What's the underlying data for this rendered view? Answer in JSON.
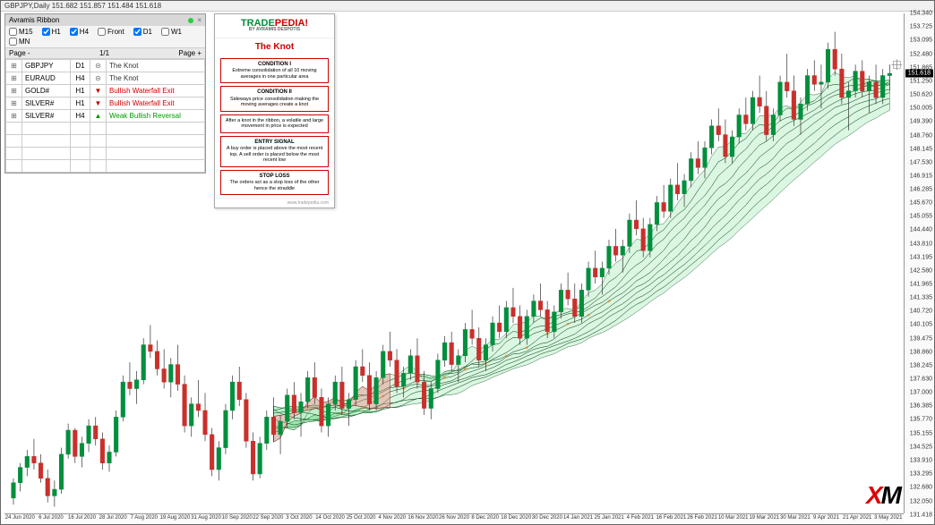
{
  "title": "GBPJPY,Daily  151.682 151.857 151.484 151.618",
  "panel": {
    "name": "Avramis Ribbon",
    "timeframes": [
      {
        "label": "M15",
        "checked": false
      },
      {
        "label": "H1",
        "checked": true
      },
      {
        "label": "H4",
        "checked": true
      },
      {
        "label": "Front",
        "checked": false
      },
      {
        "label": "D1",
        "checked": true
      },
      {
        "label": "W1",
        "checked": false
      },
      {
        "label": "MN",
        "checked": false
      }
    ],
    "page_minus": "Page -",
    "page_ind": "1/1",
    "page_plus": "Page +",
    "rows": [
      {
        "sym": "GBPJPY",
        "tf": "D1",
        "ic": "dash",
        "sig": "The Knot",
        "color": "#333"
      },
      {
        "sym": "EURAUD",
        "tf": "H4",
        "ic": "dash",
        "sig": "The Knot",
        "color": "#333"
      },
      {
        "sym": "GOLD#",
        "tf": "H1",
        "ic": "dn",
        "sig": "Bullish Waterfall Exit",
        "color": "#c00"
      },
      {
        "sym": "SILVER#",
        "tf": "H1",
        "ic": "dn",
        "sig": "Bullish Waterfall Exit",
        "color": "#c00"
      },
      {
        "sym": "SILVER#",
        "tf": "H4",
        "ic": "up",
        "sig": "Weak Bullish Reversal",
        "color": "#090"
      }
    ],
    "empty_rows": 4
  },
  "card": {
    "brand_a": "TRADE",
    "brand_b": "PEDIA",
    "brand_c": "!",
    "sub": "BY AVRAMIS DESPOTIS",
    "title": "The Knot",
    "boxes": [
      {
        "h": "CONDITION I",
        "t": "Extreme consolidation of all 10 moving averages in one particular area"
      },
      {
        "h": "CONDITION II",
        "t": "Sideways price consolidation making the moving averages create a knot"
      },
      {
        "h": "",
        "t": "After a knot in the ribbon, a volatile and large movement in price is expected"
      },
      {
        "h": "ENTRY SIGNAL",
        "t": "A buy order is placed above the most recent top. A sell order is placed below the most recent low"
      },
      {
        "h": "STOP LOSS",
        "t": "The orders act as a stop loss of the other hence the straddle"
      }
    ],
    "foot": "www.tradepedia.com"
  },
  "chart": {
    "type": "candlestick-with-ribbon",
    "ylim": [
      131.418,
      154.34
    ],
    "yticks": [
      154.34,
      153.725,
      153.095,
      152.48,
      151.865,
      151.25,
      150.62,
      150.005,
      149.39,
      148.76,
      148.145,
      147.53,
      146.915,
      146.285,
      145.67,
      145.055,
      144.44,
      143.81,
      143.195,
      142.58,
      141.965,
      141.335,
      140.72,
      140.105,
      139.475,
      138.86,
      138.245,
      137.63,
      137.0,
      136.385,
      135.77,
      135.155,
      134.525,
      133.91,
      133.295,
      132.68,
      132.05,
      131.418
    ],
    "price_now": 151.618,
    "xticks": [
      "24 Jun 2020",
      "6 Jul 2020",
      "16 Jul 2020",
      "28 Jul 2020",
      "7 Aug 2020",
      "19 Aug 2020",
      "31 Aug 2020",
      "10 Sep 2020",
      "22 Sep 2020",
      "3 Oct 2020",
      "14 Oct 2020",
      "25 Oct 2020",
      "4 Nov 2020",
      "16 Nov 2020",
      "26 Nov 2020",
      "8 Dec 2020",
      "18 Dec 2020",
      "30 Dec 2020",
      "14 Jan 2021",
      "25 Jan 2021",
      "4 Feb 2021",
      "16 Feb 2021",
      "26 Feb 2021",
      "10 Mar 2021",
      "19 Mar 2021",
      "30 Mar 2021",
      "9 Apr 2021",
      "21 Apr 2021",
      "3 May 2021"
    ],
    "candles": [
      [
        132.2,
        133.1,
        131.9,
        132.9
      ],
      [
        132.9,
        133.8,
        132.5,
        133.6
      ],
      [
        133.6,
        134.4,
        133.2,
        134.1
      ],
      [
        134.1,
        134.9,
        133.5,
        133.8
      ],
      [
        133.8,
        134.2,
        132.9,
        133.1
      ],
      [
        133.1,
        133.5,
        132.0,
        132.3
      ],
      [
        132.3,
        133.0,
        131.8,
        132.6
      ],
      [
        132.6,
        134.5,
        132.4,
        134.2
      ],
      [
        134.2,
        135.6,
        134.0,
        135.3
      ],
      [
        135.3,
        135.4,
        133.8,
        134.1
      ],
      [
        134.1,
        135.0,
        133.6,
        134.7
      ],
      [
        134.7,
        135.8,
        134.3,
        135.5
      ],
      [
        135.5,
        135.9,
        134.6,
        134.9
      ],
      [
        134.9,
        135.2,
        133.5,
        133.8
      ],
      [
        133.8,
        134.6,
        133.4,
        134.3
      ],
      [
        134.3,
        136.2,
        134.1,
        135.9
      ],
      [
        135.9,
        137.8,
        135.7,
        137.5
      ],
      [
        137.5,
        138.4,
        136.9,
        137.2
      ],
      [
        137.2,
        138.0,
        136.5,
        137.6
      ],
      [
        137.6,
        139.5,
        137.4,
        139.2
      ],
      [
        139.2,
        140.1,
        138.6,
        138.9
      ],
      [
        138.9,
        139.4,
        137.8,
        138.1
      ],
      [
        138.1,
        139.0,
        137.2,
        137.5
      ],
      [
        137.5,
        138.6,
        136.8,
        138.3
      ],
      [
        138.3,
        139.2,
        137.1,
        137.4
      ],
      [
        137.4,
        137.8,
        135.2,
        135.5
      ],
      [
        135.5,
        136.8,
        135.0,
        136.5
      ],
      [
        136.5,
        137.6,
        135.9,
        136.2
      ],
      [
        136.2,
        137.0,
        134.8,
        135.1
      ],
      [
        135.1,
        135.4,
        133.2,
        133.5
      ],
      [
        133.5,
        134.8,
        133.0,
        134.5
      ],
      [
        134.5,
        136.5,
        134.2,
        136.2
      ],
      [
        136.2,
        137.8,
        135.8,
        137.5
      ],
      [
        137.5,
        138.2,
        136.4,
        136.7
      ],
      [
        136.7,
        137.0,
        134.5,
        134.8
      ],
      [
        134.8,
        135.2,
        133.0,
        133.3
      ],
      [
        133.3,
        135.0,
        133.1,
        134.7
      ],
      [
        134.7,
        136.2,
        134.4,
        135.9
      ],
      [
        135.9,
        136.8,
        134.8,
        135.1
      ],
      [
        135.1,
        136.0,
        134.2,
        135.7
      ],
      [
        135.7,
        137.2,
        135.4,
        136.9
      ],
      [
        136.9,
        137.5,
        135.8,
        136.1
      ],
      [
        136.1,
        137.0,
        135.0,
        136.6
      ],
      [
        136.6,
        138.0,
        136.3,
        137.7
      ],
      [
        137.7,
        138.4,
        136.5,
        136.8
      ],
      [
        136.8,
        137.2,
        135.2,
        135.5
      ],
      [
        135.5,
        136.8,
        135.0,
        136.5
      ],
      [
        136.5,
        137.8,
        136.2,
        137.5
      ],
      [
        137.5,
        138.2,
        136.0,
        136.3
      ],
      [
        136.3,
        137.0,
        135.5,
        136.7
      ],
      [
        136.7,
        138.5,
        136.4,
        138.2
      ],
      [
        138.2,
        139.0,
        137.5,
        137.8
      ],
      [
        137.8,
        138.4,
        136.2,
        136.5
      ],
      [
        136.5,
        138.0,
        136.2,
        137.7
      ],
      [
        137.7,
        139.2,
        137.4,
        138.9
      ],
      [
        138.9,
        139.8,
        138.2,
        138.5
      ],
      [
        138.5,
        139.0,
        137.0,
        137.3
      ],
      [
        137.3,
        138.2,
        136.8,
        137.9
      ],
      [
        137.9,
        139.0,
        137.6,
        138.7
      ],
      [
        138.7,
        139.5,
        137.2,
        137.5
      ],
      [
        137.5,
        138.0,
        136.0,
        136.3
      ],
      [
        136.3,
        137.5,
        135.8,
        137.2
      ],
      [
        137.2,
        138.8,
        137.0,
        138.5
      ],
      [
        138.5,
        139.6,
        138.2,
        139.3
      ],
      [
        139.3,
        139.8,
        138.0,
        138.3
      ],
      [
        138.3,
        139.0,
        137.5,
        138.7
      ],
      [
        138.7,
        140.2,
        138.4,
        139.9
      ],
      [
        139.9,
        140.8,
        139.2,
        139.5
      ],
      [
        139.5,
        140.0,
        138.2,
        138.5
      ],
      [
        138.5,
        139.5,
        138.0,
        139.2
      ],
      [
        139.2,
        140.5,
        138.9,
        140.2
      ],
      [
        140.2,
        141.0,
        139.5,
        139.8
      ],
      [
        139.8,
        141.2,
        139.5,
        140.9
      ],
      [
        140.9,
        141.8,
        140.2,
        140.5
      ],
      [
        140.5,
        141.0,
        139.2,
        139.5
      ],
      [
        139.5,
        140.8,
        139.2,
        140.5
      ],
      [
        140.5,
        141.5,
        140.2,
        141.2
      ],
      [
        141.2,
        142.0,
        140.5,
        140.8
      ],
      [
        140.8,
        141.2,
        139.5,
        139.8
      ],
      [
        139.8,
        141.0,
        139.5,
        140.7
      ],
      [
        140.7,
        142.0,
        140.4,
        141.7
      ],
      [
        141.7,
        142.5,
        141.0,
        141.3
      ],
      [
        141.3,
        142.0,
        140.2,
        140.5
      ],
      [
        140.5,
        142.0,
        140.2,
        141.7
      ],
      [
        141.7,
        143.0,
        141.4,
        142.7
      ],
      [
        142.7,
        143.5,
        142.0,
        142.3
      ],
      [
        142.3,
        143.0,
        141.5,
        142.7
      ],
      [
        142.7,
        144.0,
        142.4,
        143.7
      ],
      [
        143.7,
        144.5,
        143.0,
        143.3
      ],
      [
        143.3,
        144.0,
        142.5,
        143.7
      ],
      [
        143.7,
        145.2,
        143.4,
        144.9
      ],
      [
        144.9,
        145.8,
        144.2,
        144.5
      ],
      [
        144.5,
        145.0,
        143.2,
        143.5
      ],
      [
        143.5,
        145.0,
        143.2,
        144.7
      ],
      [
        144.7,
        146.0,
        144.4,
        145.7
      ],
      [
        145.7,
        146.5,
        145.0,
        145.3
      ],
      [
        145.3,
        146.8,
        145.0,
        146.5
      ],
      [
        146.5,
        147.5,
        145.8,
        146.1
      ],
      [
        146.1,
        147.0,
        145.5,
        146.7
      ],
      [
        146.7,
        148.0,
        146.4,
        147.7
      ],
      [
        147.7,
        148.5,
        147.0,
        147.3
      ],
      [
        147.3,
        148.5,
        146.8,
        148.2
      ],
      [
        148.2,
        149.5,
        147.9,
        149.2
      ],
      [
        149.2,
        150.0,
        148.5,
        148.8
      ],
      [
        148.8,
        149.5,
        147.5,
        147.8
      ],
      [
        147.8,
        149.0,
        147.5,
        148.7
      ],
      [
        148.7,
        150.0,
        148.4,
        149.7
      ],
      [
        149.7,
        150.5,
        149.0,
        149.3
      ],
      [
        149.3,
        150.8,
        149.0,
        150.5
      ],
      [
        150.5,
        151.5,
        149.8,
        150.1
      ],
      [
        150.1,
        150.8,
        148.5,
        148.8
      ],
      [
        148.8,
        150.0,
        148.5,
        149.7
      ],
      [
        149.7,
        151.5,
        149.4,
        151.2
      ],
      [
        151.2,
        152.5,
        150.5,
        150.8
      ],
      [
        150.8,
        151.5,
        149.2,
        149.5
      ],
      [
        149.5,
        150.5,
        148.8,
        150.2
      ],
      [
        150.2,
        151.8,
        149.9,
        151.5
      ],
      [
        151.5,
        152.2,
        150.8,
        151.1
      ],
      [
        151.1,
        152.0,
        150.0,
        151.2
      ],
      [
        151.2,
        153.0,
        150.9,
        152.7
      ],
      [
        152.7,
        153.5,
        151.5,
        151.8
      ],
      [
        151.8,
        152.5,
        150.2,
        150.5
      ],
      [
        150.5,
        151.2,
        149.0,
        150.8
      ],
      [
        150.8,
        152.0,
        150.5,
        151.7
      ],
      [
        151.7,
        152.2,
        150.5,
        150.8
      ],
      [
        150.8,
        151.5,
        149.8,
        151.2
      ],
      [
        151.2,
        152.0,
        150.2,
        150.5
      ],
      [
        150.5,
        151.8,
        150.2,
        151.5
      ],
      [
        151.5,
        152.0,
        150.8,
        151.6
      ]
    ],
    "ribbon_colors": {
      "bull_outer": "#0a4d1a",
      "bull_inner": "#6edc8a",
      "bear_outer": "#8b1a1a",
      "bear_inner": "#f08080",
      "neutral": "#e67e22"
    },
    "colors": {
      "up": "#008f3c",
      "down": "#c9302c",
      "wick": "#333",
      "bg": "#ffffff",
      "axis": "#666"
    }
  },
  "brand": {
    "a": "X",
    "b": "M"
  }
}
